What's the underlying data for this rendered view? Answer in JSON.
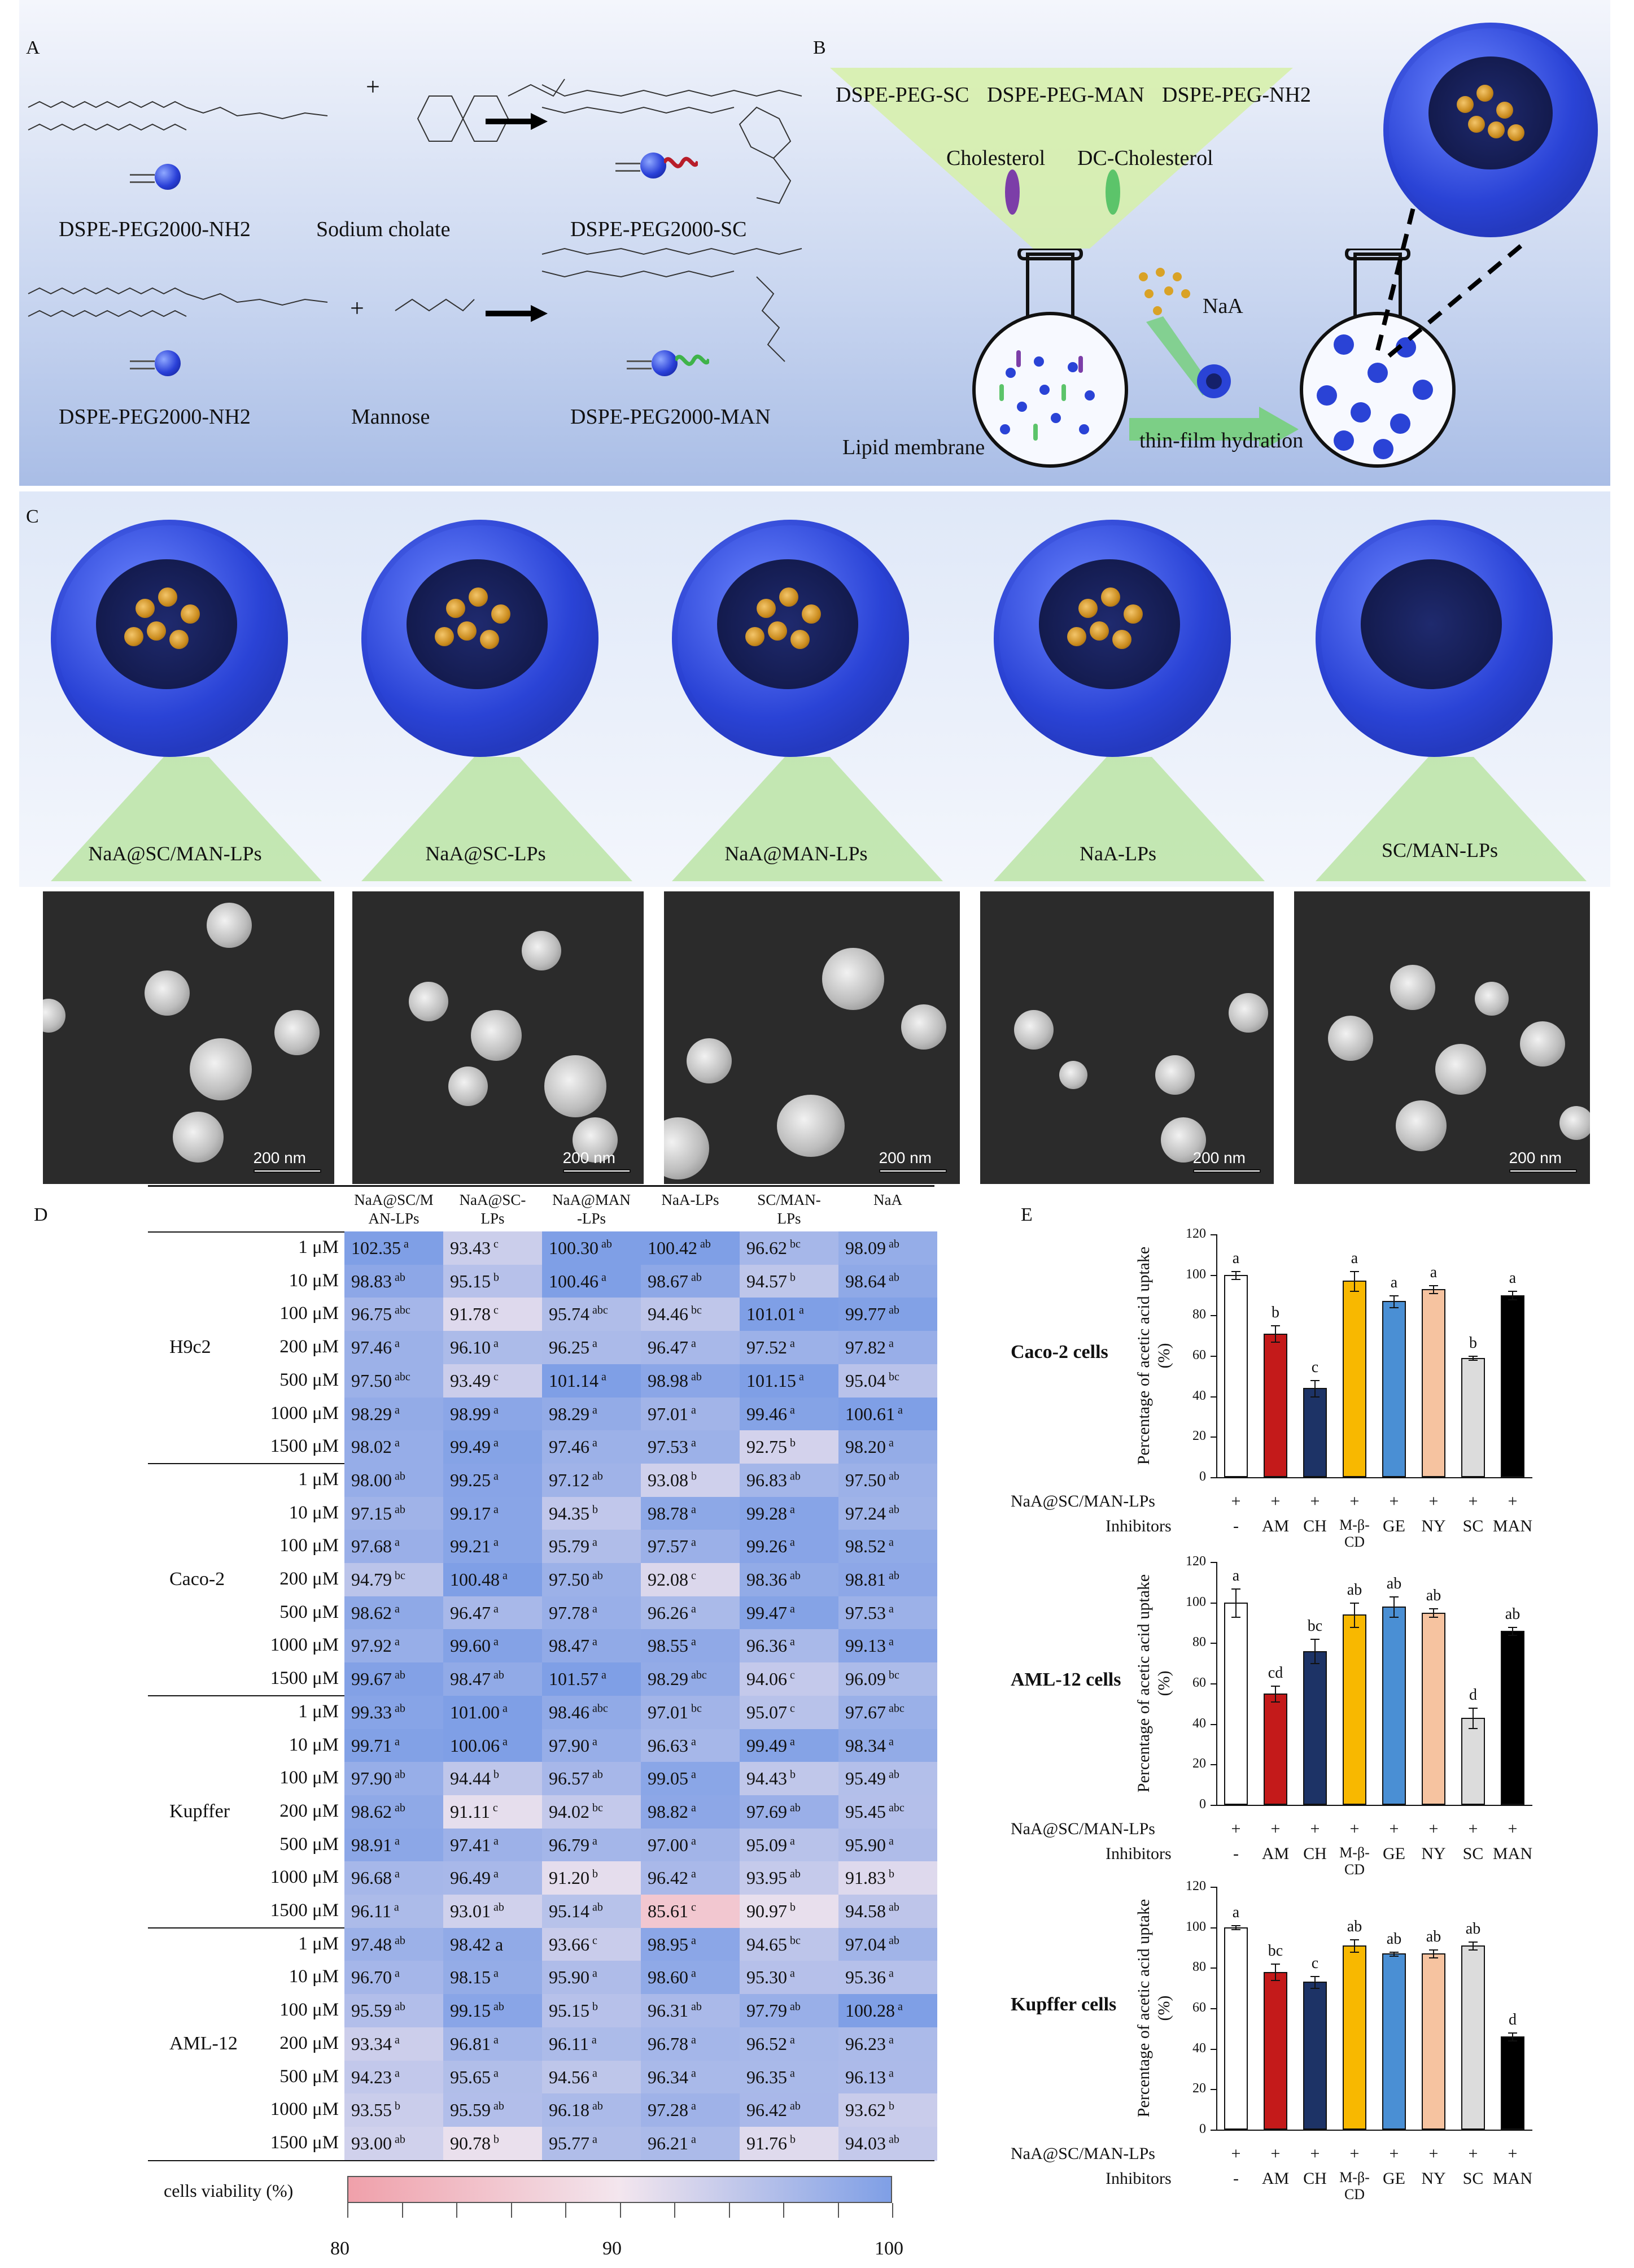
{
  "panel_labels": {
    "a": "A",
    "b": "B",
    "c": "C",
    "d": "D",
    "e": "E"
  },
  "panelA": {
    "row1": {
      "reactant": "DSPE-PEG2000-NH2",
      "plus": "+",
      "reagent": "Sodium cholate",
      "product": "DSPE-PEG2000-SC"
    },
    "row2": {
      "reactant": "DSPE-PEG2000-NH2",
      "plus": "+",
      "reagent": "Mannose",
      "product": "DSPE-PEG2000-MAN"
    }
  },
  "panelB": {
    "components": [
      "DSPE-PEG-SC",
      "DSPE-PEG-MAN",
      "DSPE-PEG-NH2"
    ],
    "cholesterol": "Cholesterol",
    "dc_cholesterol": "DC-Cholesterol",
    "drug": "NaA",
    "lipid_membrane": "Lipid membrane",
    "process": "thin-film hydration"
  },
  "panelC": {
    "formulations": [
      "NaA@SC/MAN-LPs",
      "NaA@SC-LPs",
      "NaA@MAN-LPs",
      "NaA-LPs",
      "SC/MAN-LPs"
    ],
    "scale_bar": "200 nm"
  },
  "table": {
    "columns": [
      "NaA@SC/M AN-LPs",
      "NaA@SC- LPs",
      "NaA@MAN -LPs",
      "NaA-LPs",
      "SC/MAN- LPs",
      "NaA"
    ],
    "concentrations": [
      "1 μM",
      "10 μM",
      "100 μM",
      "200 μM",
      "500 μM",
      "1000 μM",
      "1500 μM"
    ],
    "groups": [
      {
        "cell": "H9c2",
        "rows": [
          [
            [
              "102.35",
              "a"
            ],
            [
              "93.43",
              "c"
            ],
            [
              "100.30",
              "ab"
            ],
            [
              "100.42",
              "ab"
            ],
            [
              "96.62",
              "bc"
            ],
            [
              "98.09",
              "ab"
            ]
          ],
          [
            [
              "98.83",
              "ab"
            ],
            [
              "95.15",
              "b"
            ],
            [
              "100.46",
              "a"
            ],
            [
              "98.67",
              "ab"
            ],
            [
              "94.57",
              "b"
            ],
            [
              "98.64",
              "ab"
            ]
          ],
          [
            [
              "96.75",
              "abc"
            ],
            [
              "91.78",
              "c"
            ],
            [
              "95.74",
              "abc"
            ],
            [
              "94.46",
              "bc"
            ],
            [
              "101.01",
              "a"
            ],
            [
              "99.77",
              "ab"
            ]
          ],
          [
            [
              "97.46",
              "a"
            ],
            [
              "96.10",
              "a"
            ],
            [
              "96.25",
              "a"
            ],
            [
              "96.47",
              "a"
            ],
            [
              "97.52",
              "a"
            ],
            [
              "97.82",
              "a"
            ]
          ],
          [
            [
              "97.50",
              "abc"
            ],
            [
              "93.49",
              "c"
            ],
            [
              "101.14",
              "a"
            ],
            [
              "98.98",
              "ab"
            ],
            [
              "101.15",
              "a"
            ],
            [
              "95.04",
              "bc"
            ]
          ],
          [
            [
              "98.29",
              "a"
            ],
            [
              "98.99",
              "a"
            ],
            [
              "98.29",
              "a"
            ],
            [
              "97.01",
              "a"
            ],
            [
              "99.46",
              "a"
            ],
            [
              "100.61",
              "a"
            ]
          ],
          [
            [
              "98.02",
              "a"
            ],
            [
              "99.49",
              "a"
            ],
            [
              "97.46",
              "a"
            ],
            [
              "97.53",
              "a"
            ],
            [
              "92.75",
              "b"
            ],
            [
              "98.20",
              "a"
            ]
          ]
        ]
      },
      {
        "cell": "Caco-2",
        "rows": [
          [
            [
              "98.00",
              "ab"
            ],
            [
              "99.25",
              "a"
            ],
            [
              "97.12",
              "ab"
            ],
            [
              "93.08",
              "b"
            ],
            [
              "96.83",
              "ab"
            ],
            [
              "97.50",
              "ab"
            ]
          ],
          [
            [
              "97.15",
              "ab"
            ],
            [
              "99.17",
              "a"
            ],
            [
              "94.35",
              "b"
            ],
            [
              "98.78",
              "a"
            ],
            [
              "99.28",
              "a"
            ],
            [
              "97.24",
              "ab"
            ]
          ],
          [
            [
              "97.68",
              "a"
            ],
            [
              "99.21",
              "a"
            ],
            [
              "95.79",
              "a"
            ],
            [
              "97.57",
              "a"
            ],
            [
              "99.26",
              "a"
            ],
            [
              "98.52",
              "a"
            ]
          ],
          [
            [
              "94.79",
              "bc"
            ],
            [
              "100.48",
              "a"
            ],
            [
              "97.50",
              "ab"
            ],
            [
              "92.08",
              "c"
            ],
            [
              "98.36",
              "ab"
            ],
            [
              "98.81",
              "ab"
            ]
          ],
          [
            [
              "98.62",
              "a"
            ],
            [
              "96.47",
              "a"
            ],
            [
              "97.78",
              "a"
            ],
            [
              "96.26",
              "a"
            ],
            [
              "99.47",
              "a"
            ],
            [
              "97.53",
              "a"
            ]
          ],
          [
            [
              "97.92",
              "a"
            ],
            [
              "99.60",
              "a"
            ],
            [
              "98.47",
              "a"
            ],
            [
              "98.55",
              "a"
            ],
            [
              "96.36",
              "a"
            ],
            [
              "99.13",
              "a"
            ]
          ],
          [
            [
              "99.67",
              "ab"
            ],
            [
              "98.47",
              "ab"
            ],
            [
              "101.57",
              "a"
            ],
            [
              "98.29",
              "abc"
            ],
            [
              "94.06",
              "c"
            ],
            [
              "96.09",
              "bc"
            ]
          ]
        ]
      },
      {
        "cell": "Kupffer",
        "rows": [
          [
            [
              "99.33",
              "ab"
            ],
            [
              "101.00",
              "a"
            ],
            [
              "98.46",
              "abc"
            ],
            [
              "97.01",
              "bc"
            ],
            [
              "95.07",
              "c"
            ],
            [
              "97.67",
              "abc"
            ]
          ],
          [
            [
              "99.71",
              "a"
            ],
            [
              "100.06",
              "a"
            ],
            [
              "97.90",
              "a"
            ],
            [
              "96.63",
              "a"
            ],
            [
              "99.49",
              "a"
            ],
            [
              "98.34",
              "a"
            ]
          ],
          [
            [
              "97.90",
              "ab"
            ],
            [
              "94.44",
              "b"
            ],
            [
              "96.57",
              "ab"
            ],
            [
              "99.05",
              "a"
            ],
            [
              "94.43",
              "b"
            ],
            [
              "95.49",
              "ab"
            ]
          ],
          [
            [
              "98.62",
              "ab"
            ],
            [
              "91.11",
              "c"
            ],
            [
              "94.02",
              "bc"
            ],
            [
              "98.82",
              "a"
            ],
            [
              "97.69",
              "ab"
            ],
            [
              "95.45",
              "abc"
            ]
          ],
          [
            [
              "98.91",
              "a"
            ],
            [
              "97.41",
              "a"
            ],
            [
              "96.79",
              "a"
            ],
            [
              "97.00",
              "a"
            ],
            [
              "95.09",
              "a"
            ],
            [
              "95.90",
              "a"
            ]
          ],
          [
            [
              "96.68",
              "a"
            ],
            [
              "96.49",
              "a"
            ],
            [
              "91.20",
              "b"
            ],
            [
              "96.42",
              "a"
            ],
            [
              "93.95",
              "ab"
            ],
            [
              "91.83",
              "b"
            ]
          ],
          [
            [
              "96.11",
              "a"
            ],
            [
              "93.01",
              "ab"
            ],
            [
              "95.14",
              "ab"
            ],
            [
              "85.61",
              "c"
            ],
            [
              "90.97",
              "b"
            ],
            [
              "94.58",
              "ab"
            ]
          ]
        ]
      },
      {
        "cell": "AML-12",
        "rows": [
          [
            [
              "97.48",
              "ab"
            ],
            [
              "98.42 a",
              ""
            ],
            [
              "93.66",
              "c"
            ],
            [
              "98.95",
              "a"
            ],
            [
              "94.65",
              "bc"
            ],
            [
              "97.04",
              "ab"
            ]
          ],
          [
            [
              "96.70",
              "a"
            ],
            [
              "98.15",
              "a"
            ],
            [
              "95.90",
              "a"
            ],
            [
              "98.60",
              "a"
            ],
            [
              "95.30",
              "a"
            ],
            [
              "95.36",
              "a"
            ]
          ],
          [
            [
              "95.59",
              "ab"
            ],
            [
              "99.15",
              "ab"
            ],
            [
              "95.15",
              "b"
            ],
            [
              "96.31",
              "ab"
            ],
            [
              "97.79",
              "ab"
            ],
            [
              "100.28",
              "a"
            ]
          ],
          [
            [
              "93.34",
              "a"
            ],
            [
              "96.81",
              "a"
            ],
            [
              "96.11",
              "a"
            ],
            [
              "96.78",
              "a"
            ],
            [
              "96.52",
              "a"
            ],
            [
              "96.23",
              "a"
            ]
          ],
          [
            [
              "94.23",
              "a"
            ],
            [
              "95.65",
              "a"
            ],
            [
              "94.56",
              "a"
            ],
            [
              "96.34",
              "a"
            ],
            [
              "96.35",
              "a"
            ],
            [
              "96.13",
              "a"
            ]
          ],
          [
            [
              "93.55",
              "b"
            ],
            [
              "95.59",
              "ab"
            ],
            [
              "96.18",
              "ab"
            ],
            [
              "97.28",
              "a"
            ],
            [
              "96.42",
              "ab"
            ],
            [
              "93.62",
              "b"
            ]
          ],
          [
            [
              "93.00",
              "ab"
            ],
            [
              "90.78",
              "b"
            ],
            [
              "95.77",
              "a"
            ],
            [
              "96.21",
              "a"
            ],
            [
              "91.76",
              "b"
            ],
            [
              "94.03",
              "ab"
            ]
          ]
        ]
      }
    ],
    "colorbar": {
      "label": "cells viability (%)",
      "ticks": [
        "80",
        "90",
        "100"
      ],
      "min": 80,
      "max": 100,
      "low_color": "#f0a0aa",
      "mid_color": "#f3e6ee",
      "high_color": "#7f9fe6"
    }
  },
  "chart_data": [
    {
      "type": "bar",
      "title": "Caco-2 cells",
      "ylabel": "Percentage of acetic acid uptake (%)",
      "ylim": [
        0,
        120
      ],
      "yticks": [
        "0",
        "20",
        "40",
        "60",
        "80",
        "100",
        "120"
      ],
      "categories": [
        "-",
        "AM",
        "CH",
        "M-β-CD",
        "GE",
        "NY",
        "SC",
        "MAN"
      ],
      "values": [
        100,
        71,
        44,
        97,
        87,
        93,
        59,
        90
      ],
      "errors": [
        2,
        4,
        4,
        5,
        3,
        2,
        1,
        2
      ],
      "letters": [
        "a",
        "b",
        "c",
        "a",
        "a",
        "a",
        "b",
        "a"
      ],
      "colors": [
        "#ffffff",
        "#c41a1a",
        "#1d3366",
        "#f8b800",
        "#4a8fd4",
        "#f6c3a0",
        "#dcdcdc",
        "#000000"
      ]
    },
    {
      "type": "bar",
      "title": "AML-12 cells",
      "ylabel": "Percentage of acetic acid uptake (%)",
      "ylim": [
        0,
        120
      ],
      "yticks": [
        "0",
        "20",
        "40",
        "60",
        "80",
        "100",
        "120"
      ],
      "categories": [
        "-",
        "AM",
        "CH",
        "M-β-CD",
        "GE",
        "NY",
        "SC",
        "MAN"
      ],
      "values": [
        100,
        55,
        76,
        94,
        98,
        95,
        43,
        86
      ],
      "errors": [
        7,
        4,
        6,
        6,
        5,
        2,
        5,
        2
      ],
      "letters": [
        "a",
        "cd",
        "bc",
        "ab",
        "ab",
        "ab",
        "d",
        "ab"
      ],
      "colors": [
        "#ffffff",
        "#c41a1a",
        "#1d3366",
        "#f8b800",
        "#4a8fd4",
        "#f6c3a0",
        "#dcdcdc",
        "#000000"
      ]
    },
    {
      "type": "bar",
      "title": "Kupffer cells",
      "ylabel": "Percentage of acetic acid uptake (%)",
      "ylim": [
        0,
        120
      ],
      "yticks": [
        "0",
        "20",
        "40",
        "60",
        "80",
        "100",
        "120"
      ],
      "categories": [
        "-",
        "AM",
        "CH",
        "M-β-CD",
        "GE",
        "NY",
        "SC",
        "MAN"
      ],
      "values": [
        100,
        78,
        73,
        91,
        87,
        87,
        91,
        46
      ],
      "errors": [
        1,
        4,
        3,
        3,
        1,
        2,
        2,
        2
      ],
      "letters": [
        "a",
        "bc",
        "c",
        "ab",
        "ab",
        "ab",
        "ab",
        "d"
      ],
      "colors": [
        "#ffffff",
        "#c41a1a",
        "#1d3366",
        "#f8b800",
        "#4a8fd4",
        "#f6c3a0",
        "#dcdcdc",
        "#000000"
      ]
    }
  ],
  "chart_rows": {
    "row1_label": "NaA@SC/MAN-LPs",
    "row1_values": [
      "+",
      "+",
      "+",
      "+",
      "+",
      "+",
      "+",
      "+"
    ],
    "row2_label": "Inhibitors"
  }
}
